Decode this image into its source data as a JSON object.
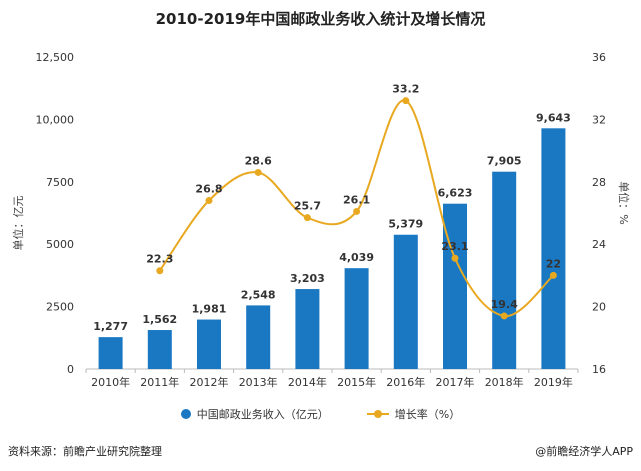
{
  "title": "2010-2019年中国邮政业务收入统计及增长情况",
  "footer": {
    "source": "资料来源：前瞻产业研究院整理",
    "copyright": "@前瞻经济学人APP"
  },
  "colors": {
    "bar": "#1a78c2",
    "line": "#e8a820"
  },
  "chart_data": {
    "type": "bar",
    "categories": [
      "2010年",
      "2011年",
      "2012年",
      "2013年",
      "2014年",
      "2015年",
      "2016年",
      "2017年",
      "2018年",
      "2019年"
    ],
    "series": [
      {
        "name": "中国邮政业务收入（亿元）",
        "type": "bar",
        "axis": "left",
        "values": [
          1277,
          1562,
          1981,
          2548,
          3203,
          4039,
          5379,
          6623,
          7905,
          9643
        ],
        "labels": [
          "1,277",
          "1,562",
          "1,981",
          "2,548",
          "3,203",
          "4,039",
          "5,379",
          "6,623",
          "7,905",
          "9,643"
        ]
      },
      {
        "name": "增长率（%）",
        "type": "line",
        "axis": "right",
        "values": [
          null,
          22.3,
          26.8,
          28.6,
          25.7,
          26.1,
          33.2,
          23.1,
          19.4,
          22
        ],
        "labels": [
          "",
          "22.3",
          "26.8",
          "28.6",
          "25.7",
          "26.1",
          "33.2",
          "23.1",
          "19.4",
          "22"
        ]
      }
    ],
    "y_left": {
      "label": "单位：亿元",
      "range": [
        0,
        12500
      ],
      "ticks": [
        0,
        2500,
        5000,
        7500,
        10000,
        12500
      ],
      "tick_labels": [
        "0",
        "2500",
        "5000",
        "7500",
        "10,000",
        "12,500"
      ]
    },
    "y_right": {
      "label": "单位：%",
      "range": [
        16,
        36
      ],
      "ticks": [
        16,
        20,
        24,
        28,
        32,
        36
      ],
      "tick_labels": [
        "16",
        "20",
        "24",
        "28",
        "32",
        "36"
      ]
    },
    "grid": false,
    "legend": "bottom"
  }
}
